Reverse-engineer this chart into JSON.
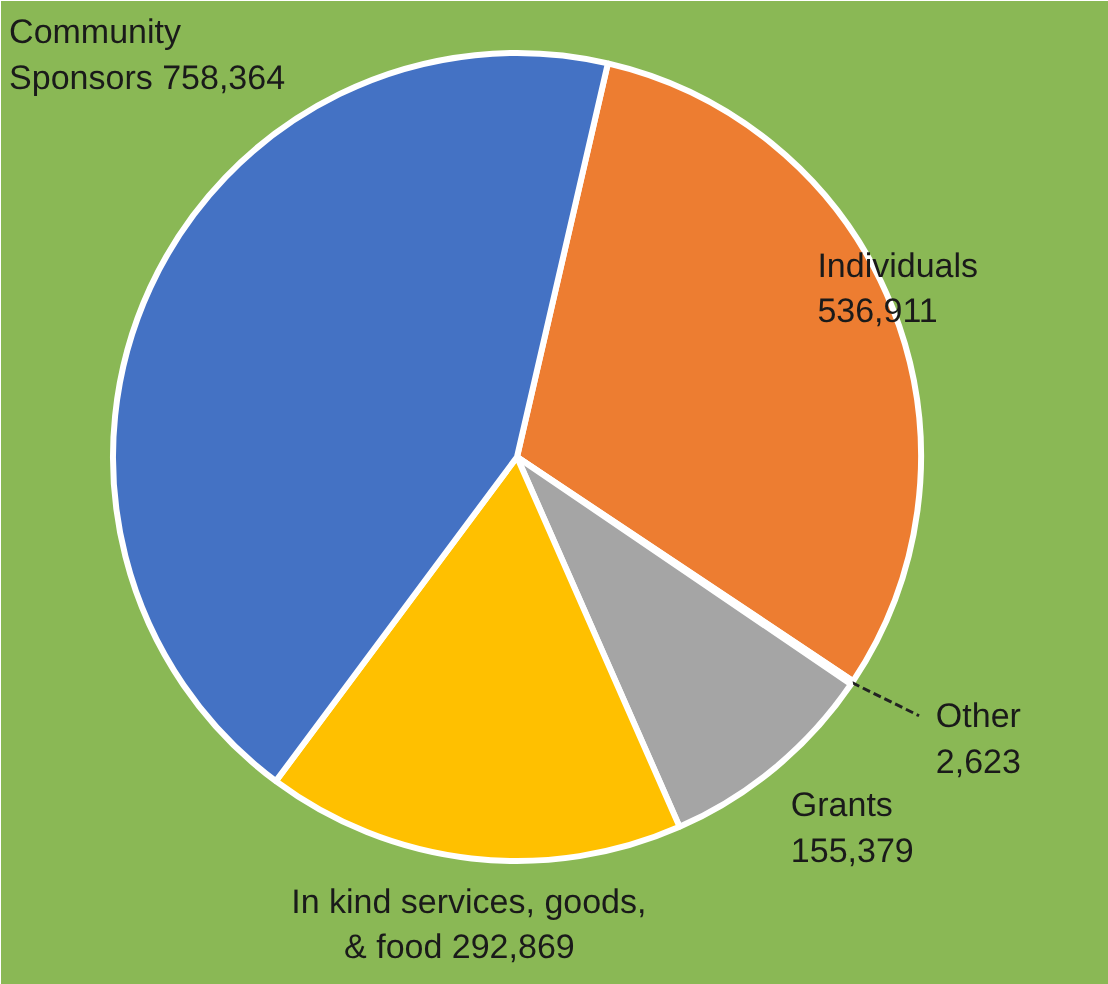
{
  "chart_data": {
    "type": "pie",
    "categories": [
      "Individuals",
      "Other",
      "Grants",
      "In kind services, goods, & food",
      "Community Sponsors"
    ],
    "values": [
      536911,
      2623,
      155379,
      292869,
      758364
    ],
    "value_labels": [
      "536,911",
      "2,623",
      "155,379",
      "292,869",
      "758,364"
    ],
    "colors": [
      "#ed7d31",
      "#5b9bd5",
      "#a5a5a5",
      "#ffc000",
      "#4472c4"
    ]
  }
}
